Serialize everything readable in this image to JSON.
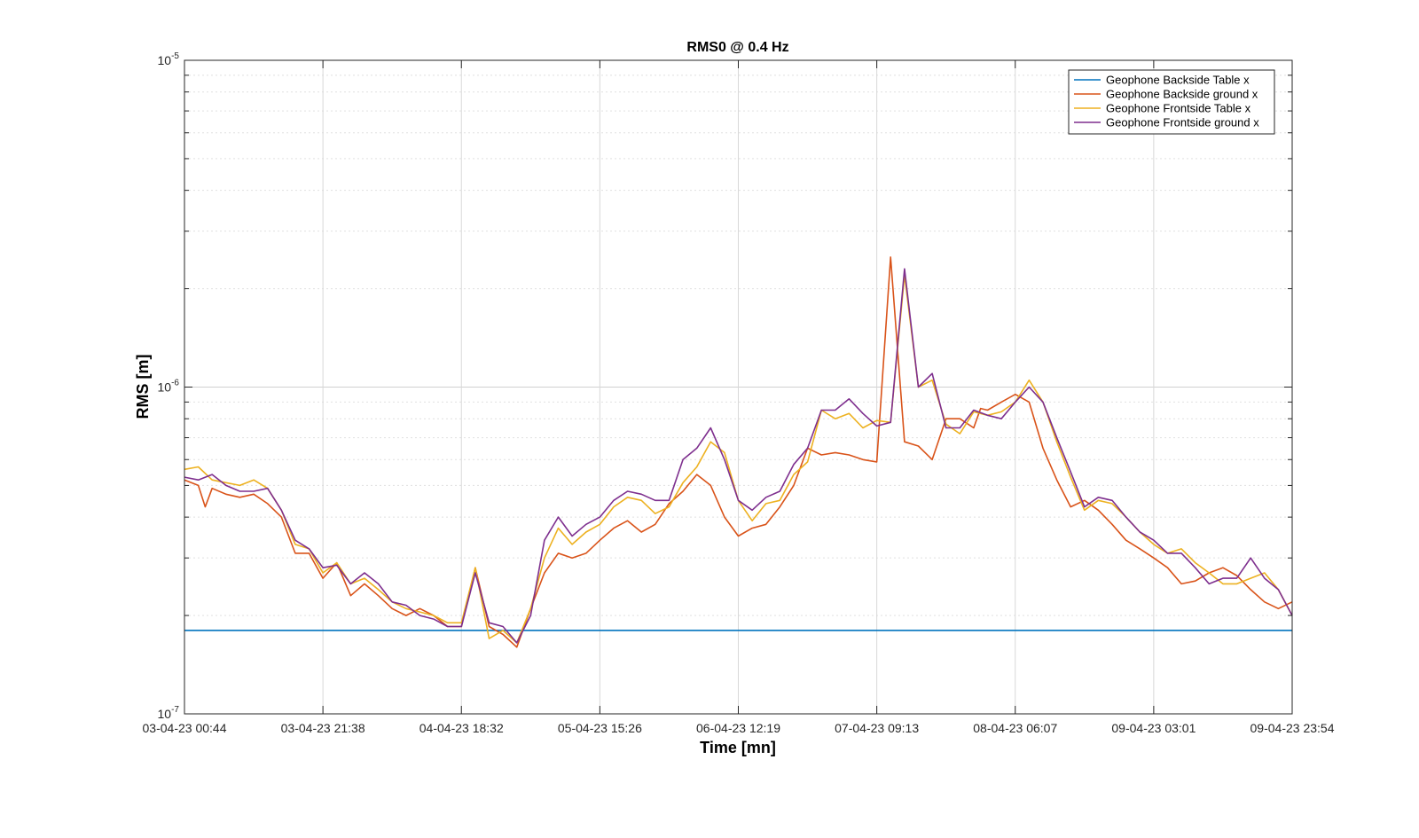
{
  "chart_data": {
    "type": "line",
    "title": "RMS0 @ 0.4 Hz",
    "xlabel": "Time [mn]",
    "ylabel": "RMS [m]",
    "yscale": "log",
    "ylim": [
      1e-07,
      1e-05
    ],
    "xlim": [
      "03-04-23 00:44",
      "09-04-23 23:54"
    ],
    "x_tick_labels": [
      "03-04-23 00:44",
      "03-04-23 21:38",
      "04-04-23 18:32",
      "05-04-23 15:26",
      "06-04-23 12:19",
      "07-04-23 09:13",
      "08-04-23 06:07",
      "09-04-23 03:01",
      "09-04-23 23:54"
    ],
    "y_tick_labels": [
      {
        "base": "10",
        "exp": "-7"
      },
      {
        "base": "10",
        "exp": "-6"
      },
      {
        "base": "10",
        "exp": "-5"
      }
    ],
    "y_ticks": [
      1e-07,
      1e-06,
      1e-05
    ],
    "grid": true,
    "legend_position": "top-right",
    "series": [
      {
        "name": "Geophone Backside Table x",
        "color": "#0072BD",
        "x": [
          0,
          8
        ],
        "y": [
          1.8e-07,
          1.8e-07
        ]
      },
      {
        "name": "Geophone Backside ground x",
        "color": "#D95319",
        "x": [
          0,
          0.1,
          0.15,
          0.2,
          0.3,
          0.4,
          0.5,
          0.6,
          0.7,
          0.8,
          0.9,
          1.0,
          1.1,
          1.2,
          1.3,
          1.4,
          1.5,
          1.6,
          1.7,
          1.8,
          1.9,
          2.0,
          2.1,
          2.2,
          2.3,
          2.4,
          2.5,
          2.6,
          2.7,
          2.8,
          2.9,
          3.0,
          3.1,
          3.2,
          3.3,
          3.4,
          3.5,
          3.6,
          3.7,
          3.8,
          3.9,
          4.0,
          4.1,
          4.2,
          4.3,
          4.4,
          4.5,
          4.6,
          4.7,
          4.8,
          4.9,
          5.0,
          5.1,
          5.2,
          5.3,
          5.4,
          5.5,
          5.6,
          5.7,
          5.75,
          5.8,
          5.9,
          6.0,
          6.1,
          6.2,
          6.3,
          6.4,
          6.5,
          6.6,
          6.7,
          6.8,
          6.9,
          7.0,
          7.1,
          7.2,
          7.3,
          7.4,
          7.5,
          7.6,
          7.7,
          7.8,
          7.9,
          8.0
        ],
        "y": [
          5.2e-07,
          5e-07,
          4.3e-07,
          4.9e-07,
          4.7e-07,
          4.6e-07,
          4.7e-07,
          4.4e-07,
          4e-07,
          3.1e-07,
          3.1e-07,
          2.6e-07,
          2.9e-07,
          2.3e-07,
          2.5e-07,
          2.3e-07,
          2.1e-07,
          2e-07,
          2.1e-07,
          2e-07,
          1.85e-07,
          1.85e-07,
          2.8e-07,
          1.85e-07,
          1.75e-07,
          1.6e-07,
          2.1e-07,
          2.7e-07,
          3.1e-07,
          3e-07,
          3.1e-07,
          3.4e-07,
          3.7e-07,
          3.9e-07,
          3.6e-07,
          3.8e-07,
          4.4e-07,
          4.8e-07,
          5.4e-07,
          5e-07,
          4e-07,
          3.5e-07,
          3.7e-07,
          3.8e-07,
          4.3e-07,
          5e-07,
          6.5e-07,
          6.2e-07,
          6.3e-07,
          6.2e-07,
          6e-07,
          5.9e-07,
          2.5e-06,
          6.8e-07,
          6.6e-07,
          6e-07,
          8e-07,
          8e-07,
          7.5e-07,
          8.6e-07,
          8.5e-07,
          9e-07,
          9.5e-07,
          9e-07,
          6.5e-07,
          5.2e-07,
          4.3e-07,
          4.5e-07,
          4.2e-07,
          3.8e-07,
          3.4e-07,
          3.2e-07,
          3e-07,
          2.8e-07,
          2.5e-07,
          2.55e-07,
          2.7e-07,
          2.8e-07,
          2.65e-07,
          2.4e-07,
          2.2e-07,
          2.1e-07,
          2.2e-07
        ]
      },
      {
        "name": "Geophone Frontside Table x",
        "color": "#EDB120",
        "x": [
          0,
          0.1,
          0.2,
          0.3,
          0.4,
          0.5,
          0.6,
          0.7,
          0.8,
          0.9,
          1.0,
          1.1,
          1.2,
          1.3,
          1.4,
          1.5,
          1.6,
          1.7,
          1.8,
          1.9,
          2.0,
          2.1,
          2.2,
          2.3,
          2.4,
          2.5,
          2.6,
          2.7,
          2.8,
          2.9,
          3.0,
          3.1,
          3.2,
          3.3,
          3.4,
          3.5,
          3.6,
          3.7,
          3.8,
          3.9,
          4.0,
          4.1,
          4.2,
          4.3,
          4.4,
          4.5,
          4.6,
          4.7,
          4.8,
          4.9,
          5.0,
          5.1,
          5.2,
          5.3,
          5.4,
          5.5,
          5.6,
          5.7,
          5.8,
          5.9,
          6.0,
          6.1,
          6.2,
          6.3,
          6.4,
          6.5,
          6.6,
          6.7,
          6.8,
          6.9,
          7.0,
          7.1,
          7.2,
          7.3,
          7.4,
          7.5,
          7.6,
          7.7,
          7.8,
          7.9,
          8.0
        ],
        "y": [
          5.6e-07,
          5.7e-07,
          5.2e-07,
          5.1e-07,
          5e-07,
          5.2e-07,
          4.9e-07,
          4.2e-07,
          3.3e-07,
          3.2e-07,
          2.7e-07,
          2.9e-07,
          2.5e-07,
          2.6e-07,
          2.4e-07,
          2.2e-07,
          2.1e-07,
          2.05e-07,
          2e-07,
          1.9e-07,
          1.9e-07,
          2.8e-07,
          1.7e-07,
          1.8e-07,
          1.65e-07,
          2.1e-07,
          3e-07,
          3.7e-07,
          3.3e-07,
          3.6e-07,
          3.8e-07,
          4.3e-07,
          4.6e-07,
          4.5e-07,
          4.1e-07,
          4.3e-07,
          5.1e-07,
          5.7e-07,
          6.8e-07,
          6.3e-07,
          4.5e-07,
          3.9e-07,
          4.4e-07,
          4.5e-07,
          5.4e-07,
          5.9e-07,
          8.5e-07,
          8e-07,
          8.3e-07,
          7.5e-07,
          7.9e-07,
          7.8e-07,
          2.2e-06,
          1e-06,
          1.05e-06,
          7.7e-07,
          7.2e-07,
          8.4e-07,
          8.2e-07,
          8.4e-07,
          9e-07,
          1.05e-06,
          9e-07,
          6.8e-07,
          5.3e-07,
          4.2e-07,
          4.5e-07,
          4.4e-07,
          4e-07,
          3.6e-07,
          3.3e-07,
          3.1e-07,
          3.2e-07,
          2.9e-07,
          2.7e-07,
          2.5e-07,
          2.5e-07,
          2.6e-07,
          2.7e-07,
          2.4e-07,
          2e-07
        ]
      },
      {
        "name": "Geophone Frontside ground x",
        "color": "#7E2F8E",
        "x": [
          0,
          0.1,
          0.2,
          0.3,
          0.4,
          0.5,
          0.6,
          0.7,
          0.8,
          0.9,
          1.0,
          1.1,
          1.2,
          1.3,
          1.4,
          1.5,
          1.6,
          1.7,
          1.8,
          1.9,
          2.0,
          2.1,
          2.2,
          2.3,
          2.4,
          2.5,
          2.6,
          2.7,
          2.8,
          2.9,
          3.0,
          3.1,
          3.2,
          3.3,
          3.4,
          3.5,
          3.6,
          3.7,
          3.8,
          3.9,
          4.0,
          4.1,
          4.2,
          4.3,
          4.4,
          4.5,
          4.6,
          4.7,
          4.8,
          4.9,
          5.0,
          5.1,
          5.2,
          5.3,
          5.4,
          5.5,
          5.6,
          5.7,
          5.8,
          5.9,
          6.0,
          6.1,
          6.2,
          6.3,
          6.4,
          6.5,
          6.6,
          6.7,
          6.8,
          6.9,
          7.0,
          7.1,
          7.2,
          7.3,
          7.4,
          7.5,
          7.6,
          7.7,
          7.8,
          7.9,
          8.0
        ],
        "y": [
          5.3e-07,
          5.2e-07,
          5.4e-07,
          5e-07,
          4.8e-07,
          4.8e-07,
          4.9e-07,
          4.2e-07,
          3.4e-07,
          3.2e-07,
          2.8e-07,
          2.85e-07,
          2.5e-07,
          2.7e-07,
          2.5e-07,
          2.2e-07,
          2.15e-07,
          2e-07,
          1.95e-07,
          1.85e-07,
          1.85e-07,
          2.7e-07,
          1.9e-07,
          1.85e-07,
          1.65e-07,
          2e-07,
          3.4e-07,
          4e-07,
          3.5e-07,
          3.8e-07,
          4e-07,
          4.5e-07,
          4.8e-07,
          4.7e-07,
          4.5e-07,
          4.5e-07,
          6e-07,
          6.5e-07,
          7.5e-07,
          6e-07,
          4.5e-07,
          4.2e-07,
          4.6e-07,
          4.8e-07,
          5.8e-07,
          6.5e-07,
          8.5e-07,
          8.5e-07,
          9.2e-07,
          8.3e-07,
          7.6e-07,
          7.8e-07,
          2.3e-06,
          1e-06,
          1.1e-06,
          7.5e-07,
          7.5e-07,
          8.5e-07,
          8.2e-07,
          8e-07,
          9e-07,
          1e-06,
          9e-07,
          7e-07,
          5.5e-07,
          4.3e-07,
          4.6e-07,
          4.5e-07,
          4e-07,
          3.6e-07,
          3.4e-07,
          3.1e-07,
          3.1e-07,
          2.8e-07,
          2.5e-07,
          2.6e-07,
          2.6e-07,
          3e-07,
          2.6e-07,
          2.4e-07,
          2e-07
        ]
      }
    ]
  }
}
